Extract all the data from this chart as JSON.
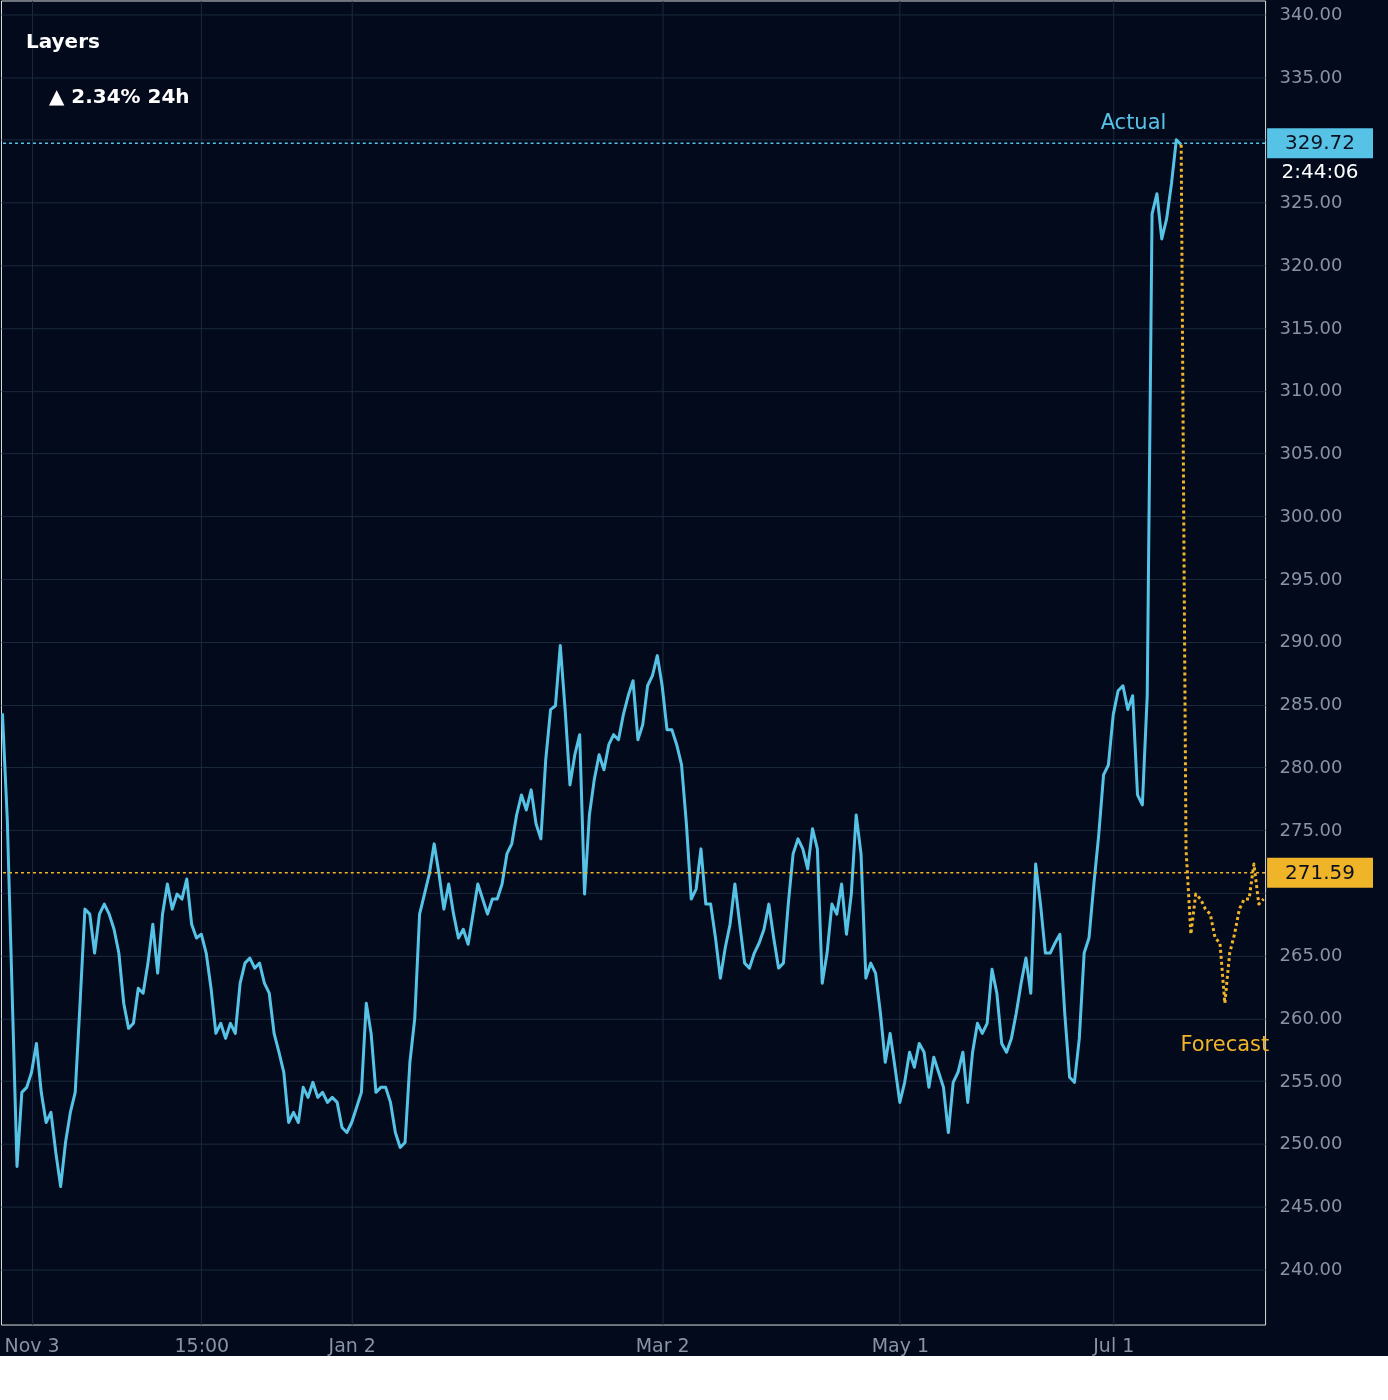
{
  "chart_data": {
    "type": "line",
    "ylim": [
      235.6,
      341.1
    ],
    "categories": [
      null,
      null,
      null,
      null,
      null,
      null,
      "Nov 3",
      null,
      null,
      null,
      null,
      null,
      null,
      null,
      null,
      null,
      null,
      null,
      null,
      null,
      null,
      null,
      null,
      null,
      null,
      null,
      null,
      null,
      null,
      null,
      null,
      null,
      null,
      null,
      null,
      null,
      null,
      null,
      null,
      null,
      null,
      "15:00",
      null,
      null,
      null,
      null,
      null,
      null,
      null,
      null,
      null,
      null,
      null,
      null,
      null,
      null,
      null,
      null,
      null,
      null,
      null,
      null,
      null,
      null,
      null,
      null,
      null,
      null,
      null,
      null,
      null,
      null,
      "Jan 2",
      null,
      null,
      null,
      null,
      null,
      null,
      null,
      null,
      null,
      null,
      null,
      null,
      null,
      null,
      null,
      null,
      null,
      null,
      null,
      null,
      null,
      null,
      null,
      null,
      null,
      null,
      null,
      null,
      null,
      null,
      null,
      null,
      null,
      null,
      null,
      null,
      null,
      null,
      null,
      null,
      null,
      null,
      null,
      null,
      null,
      null,
      null,
      null,
      null,
      null,
      null,
      null,
      null,
      null,
      null,
      null,
      null,
      null,
      null,
      null,
      null,
      null,
      null,
      "Mar 2",
      null,
      null,
      null,
      null,
      null,
      null,
      null,
      null,
      null,
      null,
      null,
      null,
      null,
      null,
      null,
      null,
      null,
      null,
      null,
      null,
      null,
      null,
      null,
      null,
      null,
      null,
      null,
      null,
      null,
      null,
      null,
      null,
      null,
      null,
      null,
      null,
      null,
      null,
      null,
      null,
      null,
      null,
      null,
      null,
      null,
      null,
      null,
      null,
      "May 1",
      null,
      null,
      null,
      null,
      null,
      null,
      null,
      null,
      null,
      null,
      null,
      null,
      null,
      null,
      null,
      null,
      null,
      null,
      null,
      null,
      null,
      null,
      null,
      null,
      null,
      null,
      null,
      null,
      null,
      null,
      null,
      null,
      null,
      null,
      null,
      null,
      null,
      null,
      null,
      null,
      null,
      null,
      null,
      "Jul 1",
      null,
      null,
      null,
      null,
      null,
      null,
      null,
      null,
      null,
      null,
      null,
      null,
      null,
      null,
      null,
      null,
      null,
      null,
      null,
      null,
      null,
      null,
      null,
      null,
      null,
      null,
      null,
      null,
      null,
      null,
      null
    ],
    "yticks": [
      {
        "value": 240,
        "label": "240.00"
      },
      {
        "value": 245,
        "label": "245.00"
      },
      {
        "value": 250,
        "label": "250.00"
      },
      {
        "value": 255,
        "label": "255.00"
      },
      {
        "value": 260,
        "label": "260.00"
      },
      {
        "value": 265,
        "label": "265.00"
      },
      {
        "value": 270,
        "label": null
      },
      {
        "value": 275,
        "label": "275.00"
      },
      {
        "value": 280,
        "label": "280.00"
      },
      {
        "value": 285,
        "label": "285.00"
      },
      {
        "value": 290,
        "label": "290.00"
      },
      {
        "value": 295,
        "label": "295.00"
      },
      {
        "value": 300,
        "label": "300.00"
      },
      {
        "value": 305,
        "label": "305.00"
      },
      {
        "value": 310,
        "label": "310.00"
      },
      {
        "value": 315,
        "label": "315.00"
      },
      {
        "value": 320,
        "label": "320.00"
      },
      {
        "value": 325,
        "label": "325.00"
      },
      {
        "value": 330,
        "label": null
      },
      {
        "value": 335,
        "label": "335.00"
      },
      {
        "value": 340,
        "label": "340.00"
      }
    ],
    "grid": true,
    "marker": "none",
    "series": [
      {
        "name": "Actual",
        "color": "#56c3e6",
        "line_style": "solid",
        "values": [
          284.3,
          275.8,
          262.0,
          248.2,
          254.1,
          254.5,
          255.7,
          258.0,
          254.1,
          251.7,
          252.5,
          249.3,
          246.6,
          250.1,
          252.5,
          254.1,
          261.2,
          268.7,
          268.3,
          265.2,
          268.3,
          269.1,
          268.3,
          267.1,
          265.2,
          261.2,
          259.2,
          259.6,
          262.4,
          262.0,
          264.4,
          267.5,
          263.6,
          268.3,
          270.7,
          268.7,
          269.9,
          269.5,
          271.1,
          267.5,
          266.4,
          266.7,
          265.2,
          262.4,
          258.8,
          259.6,
          258.4,
          259.6,
          258.8,
          262.8,
          264.4,
          264.8,
          264.0,
          264.4,
          262.8,
          262.0,
          258.8,
          257.3,
          255.7,
          251.7,
          252.5,
          251.7,
          254.5,
          253.7,
          254.9,
          253.7,
          254.1,
          253.3,
          253.7,
          253.3,
          251.3,
          250.9,
          251.7,
          252.9,
          254.1,
          261.2,
          258.8,
          254.1,
          254.5,
          254.5,
          253.3,
          250.9,
          249.7,
          250.1,
          256.5,
          260.0,
          268.3,
          269.9,
          271.5,
          273.9,
          271.5,
          268.7,
          270.7,
          268.3,
          266.4,
          267.1,
          265.9,
          268.3,
          270.7,
          269.5,
          268.3,
          269.5,
          269.5,
          270.7,
          273.1,
          273.9,
          276.2,
          277.8,
          276.6,
          278.2,
          275.5,
          274.3,
          280.6,
          284.6,
          284.9,
          289.7,
          284.6,
          278.6,
          281.0,
          282.6,
          269.9,
          276.2,
          279.0,
          281.0,
          279.8,
          281.8,
          282.6,
          282.2,
          284.2,
          285.7,
          286.9,
          282.2,
          283.4,
          286.5,
          287.3,
          288.9,
          286.5,
          283.0,
          283.0,
          281.8,
          280.2,
          275.5,
          269.5,
          270.3,
          273.5,
          269.1,
          269.1,
          266.4,
          263.2,
          265.6,
          267.5,
          270.7,
          267.5,
          264.4,
          264.0,
          265.2,
          266.0,
          267.1,
          269.1,
          266.4,
          264.0,
          264.4,
          269.1,
          273.1,
          274.3,
          273.5,
          271.9,
          275.1,
          273.5,
          262.8,
          265.2,
          269.1,
          268.3,
          270.7,
          266.7,
          269.9,
          276.2,
          273.1,
          263.2,
          264.4,
          263.6,
          260.4,
          256.5,
          258.8,
          256.1,
          253.3,
          254.9,
          257.3,
          256.1,
          258.0,
          257.3,
          254.5,
          256.9,
          255.7,
          254.5,
          250.9,
          254.9,
          255.7,
          257.3,
          253.3,
          257.3,
          259.6,
          258.8,
          259.6,
          263.9,
          262.0,
          258.0,
          257.3,
          258.4,
          260.4,
          262.8,
          264.8,
          262.0,
          272.3,
          269.1,
          265.2,
          265.2,
          266.0,
          266.7,
          260.4,
          255.3,
          254.9,
          258.4,
          265.2,
          266.4,
          270.7,
          274.6,
          279.4,
          280.2,
          284.2,
          286.1,
          286.5,
          284.6,
          285.7,
          277.8,
          277.0,
          285.7,
          324.1,
          325.7,
          322.1,
          323.7,
          326.5,
          330.0,
          329.6,
          null,
          null,
          null,
          null,
          null,
          null,
          null,
          null,
          null,
          null,
          null,
          null,
          null,
          null,
          null,
          null,
          null
        ]
      },
      {
        "name": "Forecast",
        "color": "#f0b429",
        "line_style": "dotted",
        "values": [
          null,
          null,
          null,
          null,
          null,
          null,
          null,
          null,
          null,
          null,
          null,
          null,
          null,
          null,
          null,
          null,
          null,
          null,
          null,
          null,
          null,
          null,
          null,
          null,
          null,
          null,
          null,
          null,
          null,
          null,
          null,
          null,
          null,
          null,
          null,
          null,
          null,
          null,
          null,
          null,
          null,
          null,
          null,
          null,
          null,
          null,
          null,
          null,
          null,
          null,
          null,
          null,
          null,
          null,
          null,
          null,
          null,
          null,
          null,
          null,
          null,
          null,
          null,
          null,
          null,
          null,
          null,
          null,
          null,
          null,
          null,
          null,
          null,
          null,
          null,
          null,
          null,
          null,
          null,
          null,
          null,
          null,
          null,
          null,
          null,
          null,
          null,
          null,
          null,
          null,
          null,
          null,
          null,
          null,
          null,
          null,
          null,
          null,
          null,
          null,
          null,
          null,
          null,
          null,
          null,
          null,
          null,
          null,
          null,
          null,
          null,
          null,
          null,
          null,
          null,
          null,
          null,
          null,
          null,
          null,
          null,
          null,
          null,
          null,
          null,
          null,
          null,
          null,
          null,
          null,
          null,
          null,
          null,
          null,
          null,
          null,
          null,
          null,
          null,
          null,
          null,
          null,
          null,
          null,
          null,
          null,
          null,
          null,
          null,
          null,
          null,
          null,
          null,
          null,
          null,
          null,
          null,
          null,
          null,
          null,
          null,
          null,
          null,
          null,
          null,
          null,
          null,
          null,
          null,
          null,
          null,
          null,
          null,
          null,
          null,
          null,
          null,
          null,
          null,
          null,
          null,
          null,
          null,
          null,
          null,
          null,
          null,
          null,
          null,
          null,
          null,
          null,
          null,
          null,
          null,
          null,
          null,
          null,
          null,
          null,
          null,
          null,
          null,
          null,
          null,
          null,
          null,
          null,
          null,
          null,
          null,
          null,
          null,
          null,
          null,
          null,
          null,
          null,
          null,
          null,
          null,
          null,
          null,
          null,
          null,
          null,
          null,
          null,
          null,
          null,
          null,
          null,
          null,
          null,
          null,
          null,
          null,
          null,
          null,
          null,
          null,
          null,
          null,
          329.6,
          273.5,
          266.7,
          269.9,
          269.5,
          268.7,
          268.3,
          266.4,
          266.0,
          261.2,
          265.2,
          266.7,
          268.7,
          269.5,
          269.5,
          272.3,
          269.1,
          269.5
        ]
      }
    ],
    "ref_lines": [
      {
        "axis": "y",
        "value": 329.72,
        "label": "329.72",
        "color": "#56c3e6",
        "line_style": "dotted"
      },
      {
        "axis": "y",
        "value": 271.59,
        "label": "271.59",
        "color": "#f0b429",
        "line_style": "dotted"
      }
    ],
    "annotations": [
      "Layers",
      "▲ 2.34% 24h",
      "2:44:06"
    ]
  }
}
